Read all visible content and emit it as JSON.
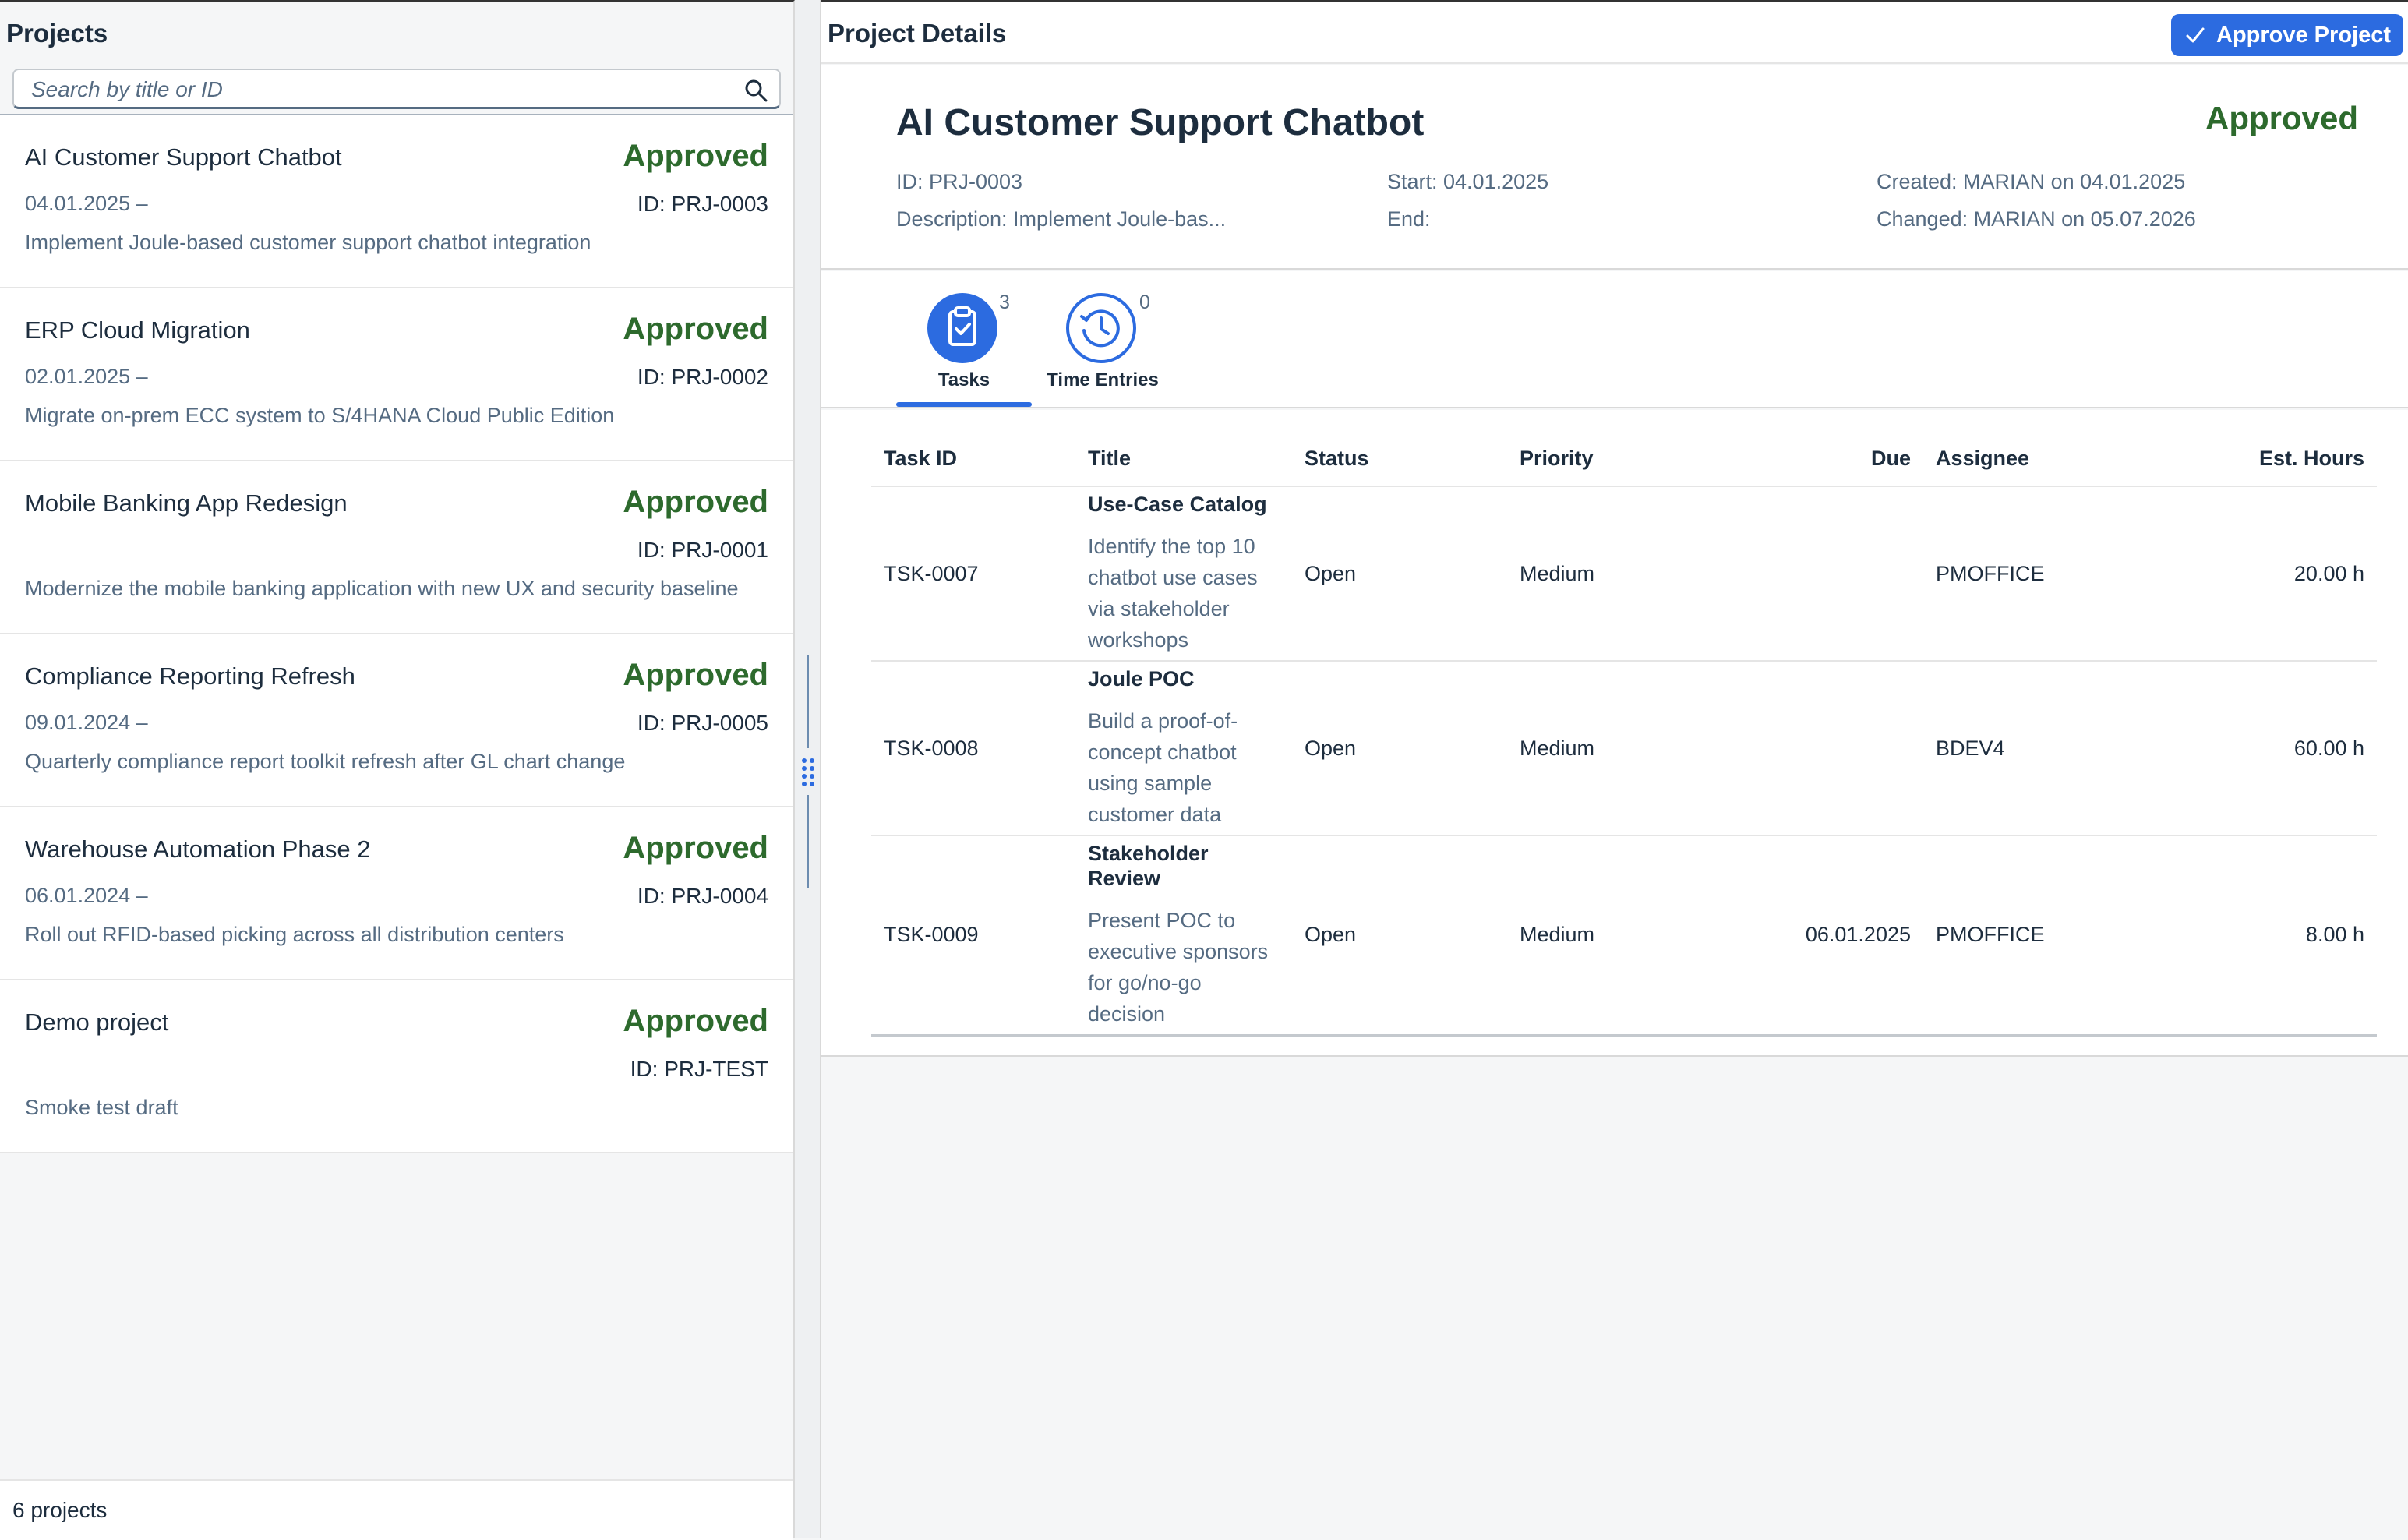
{
  "master": {
    "title": "Projects",
    "search_placeholder": "Search by title or ID",
    "footer": "6 projects",
    "items": [
      {
        "title": "AI Customer Support Chatbot",
        "status": "Approved",
        "date": "04.01.2025 –",
        "id": "ID: PRJ-0003",
        "description": "Implement Joule-based customer support chatbot integration"
      },
      {
        "title": "ERP Cloud Migration",
        "status": "Approved",
        "date": "02.01.2025 –",
        "id": "ID: PRJ-0002",
        "description": "Migrate on-prem ECC system to S/4HANA Cloud Public Edition"
      },
      {
        "title": "Mobile Banking App Redesign",
        "status": "Approved",
        "date": "",
        "id": "ID: PRJ-0001",
        "description": "Modernize the mobile banking application with new UX and security baseline"
      },
      {
        "title": "Compliance Reporting Refresh",
        "status": "Approved",
        "date": "09.01.2024 –",
        "id": "ID: PRJ-0005",
        "description": "Quarterly compliance report toolkit refresh after GL chart change"
      },
      {
        "title": "Warehouse Automation Phase 2",
        "status": "Approved",
        "date": "06.01.2024 –",
        "id": "ID: PRJ-0004",
        "description": "Roll out RFID-based picking across all distribution centers"
      },
      {
        "title": "Demo project",
        "status": "Approved",
        "date": "",
        "id": "ID: PRJ-TEST",
        "description": "Smoke test draft"
      }
    ]
  },
  "detail": {
    "bar_title": "Project Details",
    "approve_label": "Approve Project",
    "header": {
      "title": "AI Customer Support Chatbot",
      "status": "Approved",
      "id": "ID: PRJ-0003",
      "description": "Description: Implement Joule-bas...",
      "start": "Start: 04.01.2025",
      "end": "End:",
      "created": "Created: MARIAN on 04.01.2025",
      "changed": "Changed: MARIAN on 05.07.2026"
    },
    "tabs": [
      {
        "label": "Tasks",
        "count": "3"
      },
      {
        "label": "Time Entries",
        "count": "0"
      }
    ],
    "table": {
      "columns": [
        "Task ID",
        "Title",
        "Status",
        "Priority",
        "Due",
        "Assignee",
        "Est. Hours"
      ],
      "rows": [
        {
          "task_id": "TSK-0007",
          "title": "Use-Case Catalog",
          "description": "Identify the top 10 chatbot use cases via stakeholder workshops",
          "status": "Open",
          "priority": "Medium",
          "due": "",
          "assignee": "PMOFFICE",
          "hours": "20.00 h"
        },
        {
          "task_id": "TSK-0008",
          "title": "Joule POC",
          "description": "Build a proof-of-concept chatbot using sample customer data",
          "status": "Open",
          "priority": "Medium",
          "due": "",
          "assignee": "BDEV4",
          "hours": "60.00 h"
        },
        {
          "task_id": "TSK-0009",
          "title": "Stakeholder Review",
          "description": "Present POC to executive sponsors for go/no-go decision",
          "status": "Open",
          "priority": "Medium",
          "due": "06.01.2025",
          "assignee": "PMOFFICE",
          "hours": "8.00 h"
        }
      ]
    }
  },
  "colors": {
    "accent": "#2c6be0",
    "positive": "#2d6a2d",
    "priority_medium": "#c35500"
  }
}
